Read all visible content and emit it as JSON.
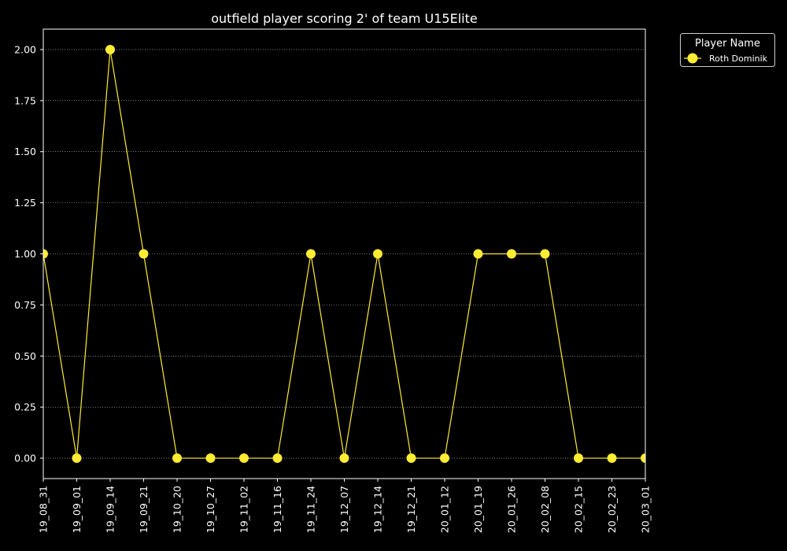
{
  "chart_data": {
    "type": "line",
    "title": "outfield player scoring 2' of team U15Elite",
    "xlabel": "",
    "ylabel": "",
    "categories": [
      "19_08_31",
      "19_09_01",
      "19_09_14",
      "19_09_21",
      "19_10_20",
      "19_10_27",
      "19_11_02",
      "19_11_16",
      "19_11_24",
      "19_12_07",
      "19_12_14",
      "19_12_21",
      "20_01_12",
      "20_01_19",
      "20_01_26",
      "20_02_08",
      "20_02_15",
      "20_02_23",
      "20_03_01"
    ],
    "series": [
      {
        "name": "Roth Dominik",
        "values": [
          1,
          0,
          2,
          1,
          0,
          0,
          0,
          0,
          1,
          0,
          1,
          0,
          0,
          1,
          1,
          1,
          0,
          0,
          0
        ],
        "color": "#ffec33"
      }
    ],
    "ylim": [
      -0.1,
      2.1
    ],
    "yticks": [
      "0.00",
      "0.25",
      "0.50",
      "0.75",
      "1.00",
      "1.25",
      "1.50",
      "1.75",
      "2.00"
    ],
    "grid": "horizontal dotted",
    "legend": {
      "title": "Player Name",
      "placement": "outside-top-right"
    },
    "colors": {
      "background": "#000000",
      "foreground": "#ffffff",
      "grid": "#ffffff"
    }
  }
}
